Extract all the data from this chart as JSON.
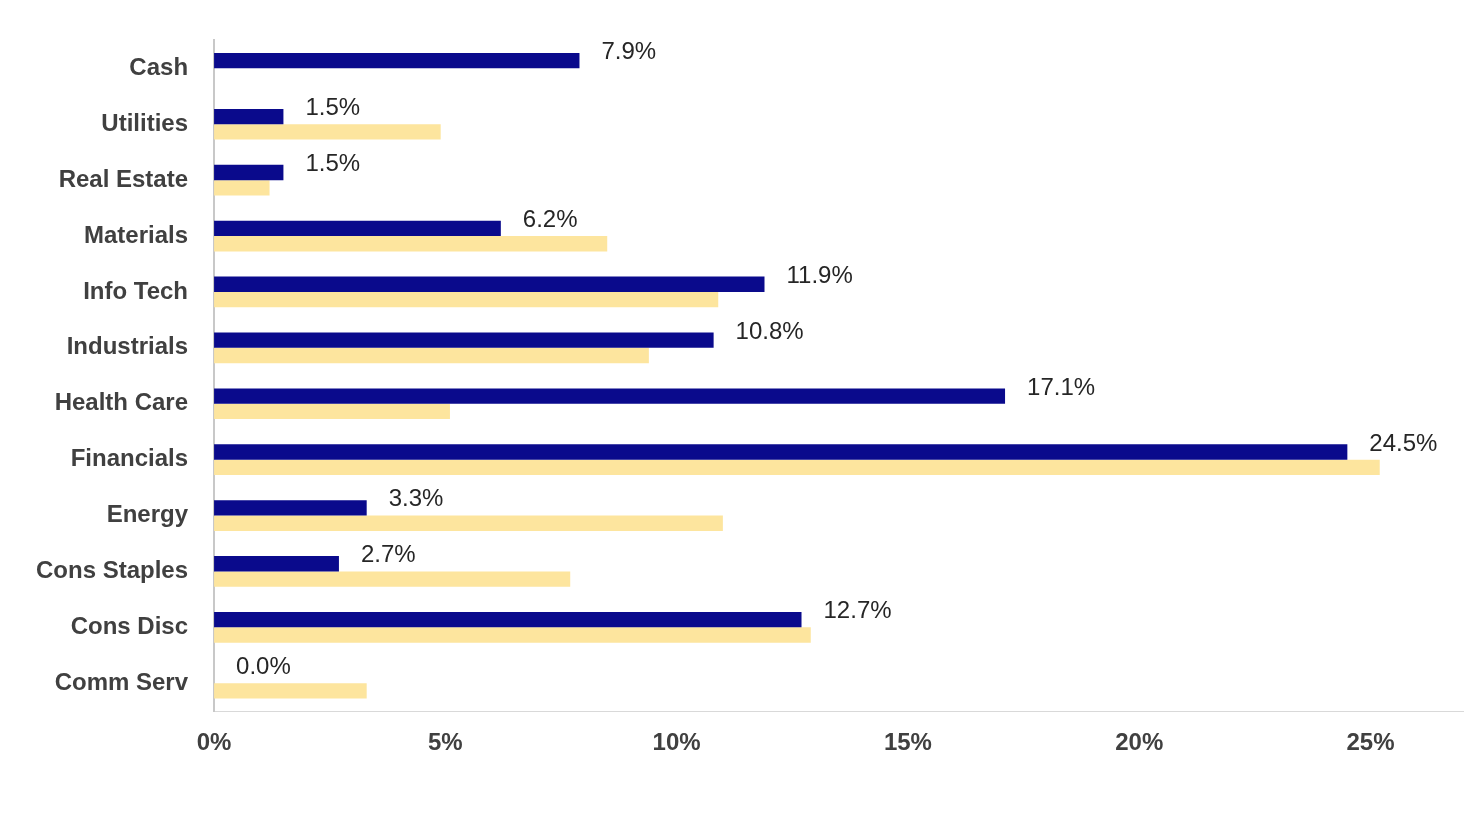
{
  "chart_data": {
    "type": "bar",
    "orientation": "horizontal",
    "categories": [
      "Cash",
      "Utilities",
      "Real Estate",
      "Materials",
      "Info Tech",
      "Industrials",
      "Health Care",
      "Financials",
      "Energy",
      "Cons Staples",
      "Cons Disc",
      "Comm Serv"
    ],
    "series": [
      {
        "color": "#0a0a8c",
        "values": [
          7.9,
          1.5,
          1.5,
          6.2,
          11.9,
          10.8,
          17.1,
          24.5,
          3.3,
          2.7,
          12.7,
          0.0
        ],
        "value_labels": [
          "7.9%",
          "1.5%",
          "1.5%",
          "6.2%",
          "11.9%",
          "10.8%",
          "17.1%",
          "24.5%",
          "3.3%",
          "2.7%",
          "12.7%",
          "0.0%"
        ]
      },
      {
        "color": "#fde59e",
        "values": [
          null,
          4.9,
          1.2,
          8.5,
          10.9,
          9.4,
          5.1,
          25.2,
          11.0,
          7.7,
          12.9,
          3.3
        ]
      }
    ],
    "xlim": [
      0,
      27
    ],
    "xticks": [
      {
        "value": 0,
        "label": "0%"
      },
      {
        "value": 5,
        "label": "5%"
      },
      {
        "value": 10,
        "label": "10%"
      },
      {
        "value": 15,
        "label": "15%"
      },
      {
        "value": 20,
        "label": "20%"
      },
      {
        "value": 25,
        "label": "25%"
      }
    ],
    "grid": false,
    "legend": false
  }
}
